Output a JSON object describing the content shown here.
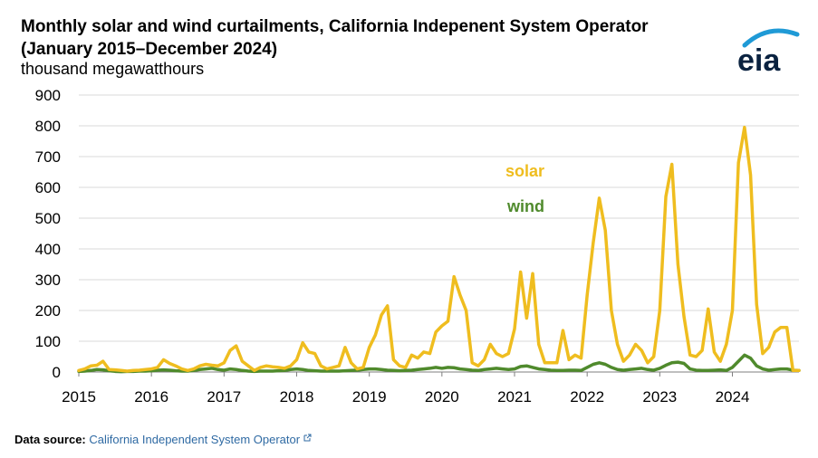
{
  "header": {
    "title_line1": "Monthly solar and wind curtailments, California Indepenent System Operator",
    "title_line2": "(January 2015–December 2024)",
    "units": "thousand megawatthours"
  },
  "logo": {
    "text": "eia",
    "icon": "eia-logo-arc"
  },
  "source": {
    "label": "Data source:",
    "link_text": "California Independent System Operator",
    "link_icon": "external-link-icon"
  },
  "chart_data": {
    "type": "line",
    "ylabel": "thousand megawatthours",
    "ylim": [
      0,
      900
    ],
    "yticks": [
      0,
      100,
      200,
      300,
      400,
      500,
      600,
      700,
      800,
      900
    ],
    "xticks": [
      "2015",
      "2016",
      "2017",
      "2018",
      "2019",
      "2020",
      "2021",
      "2022",
      "2023",
      "2024"
    ],
    "grid": "horizontal",
    "x_start": "2015-01",
    "x_end": "2024-12",
    "frequency": "monthly",
    "colors": {
      "solar": "#efbd1f",
      "wind": "#4f8a2c",
      "grid": "#d9d9d9",
      "axis": "#7f7f7f"
    },
    "series": [
      {
        "name": "solar",
        "values": [
          5,
          10,
          20,
          22,
          35,
          8,
          7,
          5,
          3,
          5,
          6,
          8,
          10,
          15,
          40,
          28,
          20,
          10,
          5,
          10,
          20,
          25,
          22,
          20,
          30,
          70,
          85,
          35,
          20,
          5,
          15,
          20,
          17,
          15,
          12,
          20,
          40,
          95,
          65,
          60,
          20,
          10,
          15,
          20,
          80,
          30,
          10,
          15,
          80,
          120,
          185,
          215,
          40,
          20,
          15,
          55,
          45,
          65,
          60,
          130,
          150,
          165,
          310,
          250,
          200,
          30,
          20,
          40,
          90,
          60,
          50,
          60,
          140,
          325,
          175,
          320,
          90,
          30,
          30,
          30,
          135,
          40,
          55,
          45,
          250,
          420,
          565,
          460,
          200,
          90,
          35,
          55,
          90,
          70,
          30,
          50,
          200,
          570,
          675,
          350,
          180,
          55,
          50,
          70,
          205,
          65,
          35,
          90,
          200,
          680,
          795,
          640,
          220,
          60,
          80,
          130,
          145,
          145,
          5,
          5
        ]
      },
      {
        "name": "wind",
        "values": [
          2,
          3,
          5,
          8,
          7,
          4,
          2,
          1,
          2,
          2,
          3,
          3,
          4,
          6,
          7,
          6,
          4,
          3,
          3,
          5,
          8,
          10,
          12,
          8,
          6,
          10,
          8,
          5,
          3,
          2,
          3,
          3,
          3,
          4,
          5,
          8,
          10,
          8,
          5,
          4,
          3,
          3,
          3,
          3,
          4,
          5,
          6,
          8,
          10,
          10,
          8,
          6,
          5,
          4,
          5,
          6,
          8,
          10,
          12,
          15,
          12,
          15,
          14,
          10,
          8,
          6,
          5,
          8,
          10,
          12,
          10,
          8,
          10,
          18,
          20,
          15,
          10,
          8,
          6,
          5,
          5,
          6,
          6,
          5,
          15,
          25,
          30,
          25,
          15,
          8,
          6,
          8,
          10,
          12,
          8,
          6,
          12,
          22,
          30,
          32,
          28,
          10,
          6,
          5,
          5,
          6,
          7,
          5,
          15,
          35,
          55,
          45,
          20,
          10,
          6,
          8,
          10,
          10,
          6,
          5
        ]
      }
    ],
    "annotations": [
      {
        "text": "solar",
        "series": "solar"
      },
      {
        "text": "wind",
        "series": "wind"
      }
    ]
  }
}
